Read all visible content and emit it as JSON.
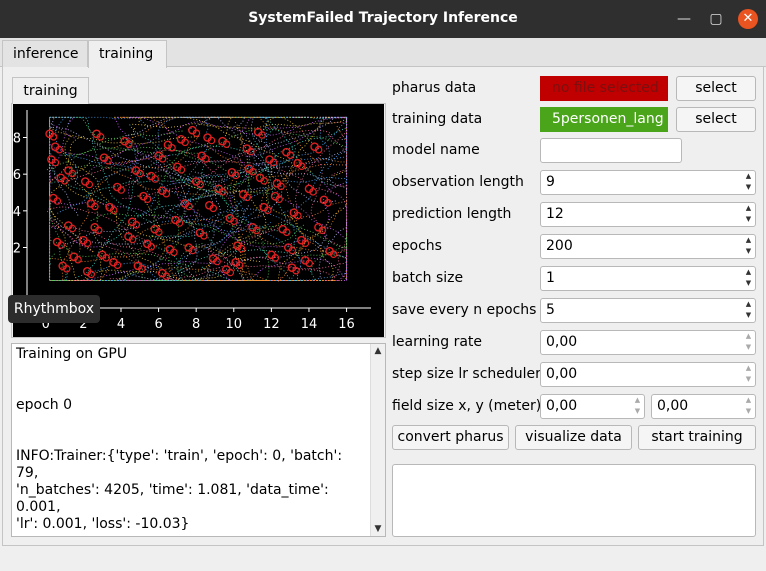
{
  "window": {
    "title": "SystemFailed Trajectory Inference",
    "minimize_glyph": "—",
    "maximize_glyph": "▢",
    "close_glyph": "✕"
  },
  "tabs": [
    {
      "label": "inference",
      "active": false
    },
    {
      "label": "training",
      "active": true
    }
  ],
  "subtab": {
    "label": "training"
  },
  "tooltip": {
    "text": "Rhythmbox"
  },
  "chart_data": {
    "type": "scatter",
    "title": "",
    "xlabel": "",
    "ylabel": "",
    "xlim": [
      -1,
      17.3
    ],
    "ylim": [
      -1.3,
      9.5
    ],
    "x_ticks": [
      0,
      2,
      4,
      6,
      8,
      10,
      12,
      14,
      16
    ],
    "y_ticks": [
      2,
      4,
      6,
      8
    ],
    "background": "#000000",
    "marker_color": "#e02020",
    "trajectory_colors": [
      "#ff8c2a",
      "#ffd43b",
      "#5ad05a",
      "#4aa8ff",
      "#d060ff",
      "#ff6aa0",
      "#40e0d0",
      "#c0c0ff"
    ],
    "grid": false,
    "description": "dense dotted trajectories with red circle markers",
    "marker_points": [
      [
        0.2,
        8.2
      ],
      [
        0.5,
        7.5
      ],
      [
        0.3,
        6.8
      ],
      [
        0.8,
        5.8
      ],
      [
        0.4,
        4.7
      ],
      [
        1.2,
        3.2
      ],
      [
        0.6,
        2.3
      ],
      [
        1.5,
        1.5
      ],
      [
        2.2,
        0.7
      ],
      [
        3.0,
        1.6
      ],
      [
        2.6,
        3.1
      ],
      [
        3.4,
        4.2
      ],
      [
        2.1,
        5.6
      ],
      [
        3.1,
        6.9
      ],
      [
        2.7,
        8.2
      ],
      [
        4.2,
        7.8
      ],
      [
        4.8,
        6.2
      ],
      [
        5.2,
        4.8
      ],
      [
        4.6,
        3.4
      ],
      [
        5.4,
        2.2
      ],
      [
        4.9,
        1.0
      ],
      [
        6.2,
        0.6
      ],
      [
        6.6,
        1.9
      ],
      [
        6.9,
        3.5
      ],
      [
        6.2,
        5.1
      ],
      [
        7.0,
        6.4
      ],
      [
        6.5,
        7.6
      ],
      [
        7.8,
        8.4
      ],
      [
        8.3,
        7.0
      ],
      [
        8.0,
        5.6
      ],
      [
        8.7,
        4.3
      ],
      [
        8.2,
        2.8
      ],
      [
        8.9,
        1.4
      ],
      [
        9.6,
        0.8
      ],
      [
        10.2,
        2.1
      ],
      [
        9.8,
        3.6
      ],
      [
        10.5,
        4.9
      ],
      [
        9.9,
        6.1
      ],
      [
        10.7,
        7.4
      ],
      [
        11.3,
        8.3
      ],
      [
        11.9,
        6.8
      ],
      [
        12.3,
        5.5
      ],
      [
        11.6,
        4.2
      ],
      [
        12.6,
        3.0
      ],
      [
        12.0,
        1.6
      ],
      [
        13.1,
        0.9
      ],
      [
        13.6,
        2.4
      ],
      [
        13.2,
        3.9
      ],
      [
        14.0,
        5.2
      ],
      [
        13.4,
        6.6
      ],
      [
        14.3,
        7.5
      ],
      [
        14.8,
        4.6
      ],
      [
        14.5,
        3.1
      ],
      [
        15.1,
        1.8
      ],
      [
        3.8,
        5.3
      ],
      [
        5.8,
        3.0
      ],
      [
        7.4,
        4.4
      ],
      [
        9.2,
        5.2
      ],
      [
        11.0,
        3.1
      ],
      [
        12.8,
        7.2
      ],
      [
        2.0,
        2.4
      ],
      [
        3.6,
        1.2
      ],
      [
        6.0,
        7.0
      ],
      [
        8.6,
        8.0
      ],
      [
        10.1,
        1.2
      ],
      [
        12.2,
        4.8
      ],
      [
        1.2,
        6.2
      ],
      [
        4.4,
        2.6
      ],
      [
        7.6,
        2.0
      ],
      [
        9.4,
        7.8
      ],
      [
        11.4,
        5.8
      ],
      [
        13.8,
        1.3
      ],
      [
        0.9,
        1.0
      ],
      [
        2.4,
        4.4
      ],
      [
        5.6,
        5.9
      ],
      [
        7.2,
        7.9
      ],
      [
        10.8,
        6.3
      ],
      [
        12.9,
        2.0
      ]
    ]
  },
  "log": {
    "lines": [
      "Training on GPU",
      "",
      "",
      "epoch 0",
      "",
      "",
      "INFO:Trainer:{'type': 'train', 'epoch': 0, 'batch': 79,",
      "'n_batches': 4205, 'time': 1.081, 'data_time': 0.001,",
      "'lr': 0.001, 'loss': -10.03}"
    ]
  },
  "form": {
    "pharus": {
      "label": "pharus data",
      "status": "no file selected",
      "status_color": "#c00000",
      "status_text_color": "#7a1010",
      "button": "select"
    },
    "training_data": {
      "label": "training data",
      "status": "5personen_lang",
      "status_color": "#4aa51a",
      "status_text_color": "#ffffff",
      "button": "select"
    },
    "model_name": {
      "label": "model name",
      "value": ""
    },
    "observation_length": {
      "label": "observation length",
      "value": "9"
    },
    "prediction_length": {
      "label": "prediction length",
      "value": "12"
    },
    "epochs": {
      "label": "epochs",
      "value": "200"
    },
    "batch_size": {
      "label": "batch size",
      "value": "1"
    },
    "save_every": {
      "label": "save every n epochs",
      "value": "5"
    },
    "learning_rate": {
      "label": "learning rate",
      "value": "0,00"
    },
    "step_size": {
      "label": "step size lr scheduler",
      "value": "0,00"
    },
    "field_size": {
      "label": "field size x, y (meter)",
      "x": "0,00",
      "y": "0,00"
    }
  },
  "actions": {
    "convert": "convert pharus",
    "visualize": "visualize data",
    "start": "start training"
  }
}
